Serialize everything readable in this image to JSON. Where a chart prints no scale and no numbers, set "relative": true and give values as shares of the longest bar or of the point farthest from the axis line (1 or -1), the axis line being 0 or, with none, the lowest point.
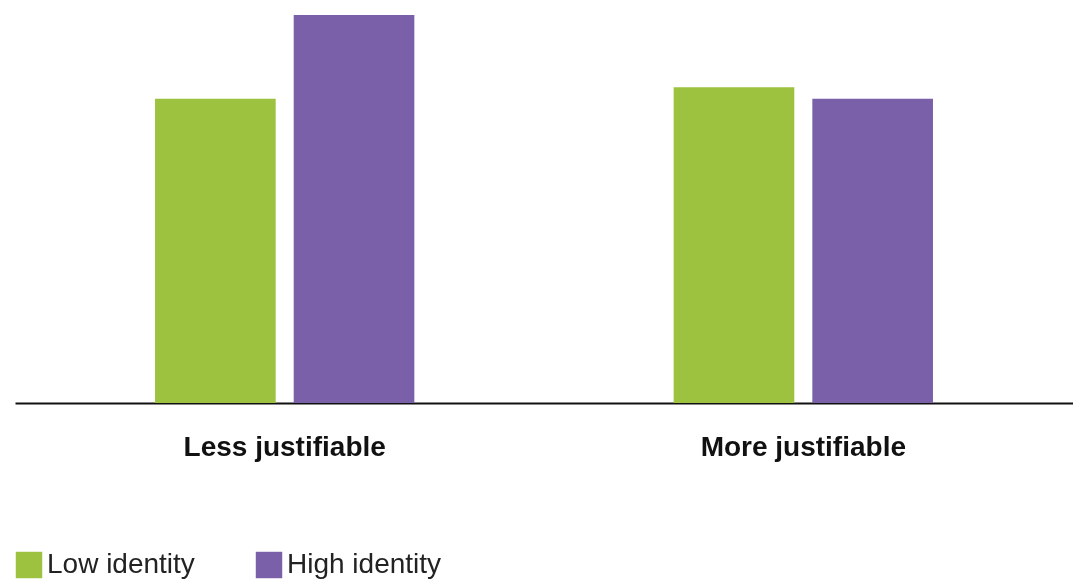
{
  "chart_data": {
    "type": "bar",
    "relative": true,
    "legend": "bottom",
    "categories": [
      "Less justifiable",
      "More justifiable"
    ],
    "series": [
      {
        "name": "Low identity",
        "color": "#9dc23f",
        "values": [
          0.784,
          0.814
        ]
      },
      {
        "name": "High identity",
        "color": "#7a60a8",
        "values": [
          1,
          0.784
        ]
      }
    ]
  }
}
